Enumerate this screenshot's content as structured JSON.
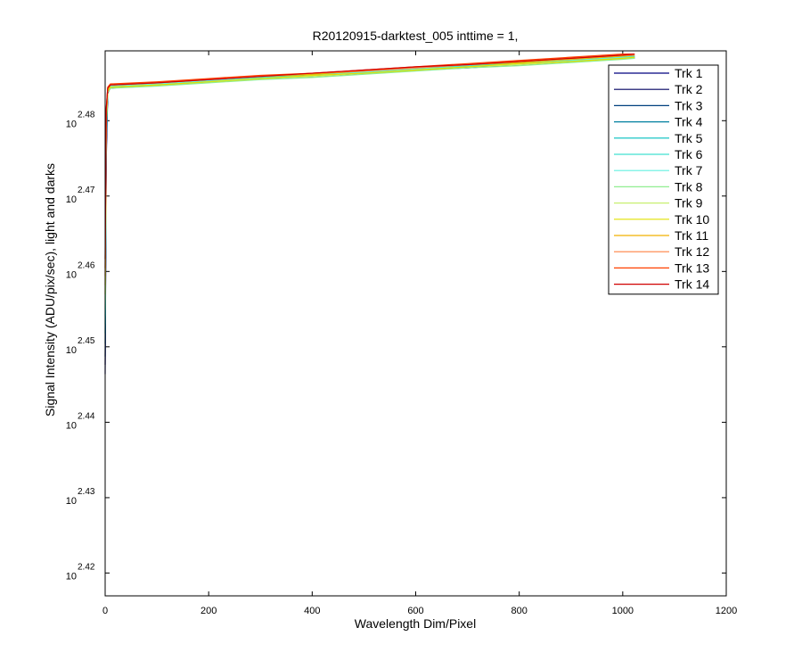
{
  "chart_data": {
    "type": "line",
    "title": "R20120915-darktest_005 inttime = 1,",
    "x_label": "Wavelength Dim/Pixel",
    "y_label": "Signal Intensity (ADU/pix/sec), light and darks",
    "yscale": "log",
    "xlim": [
      0,
      1200
    ],
    "xticks": [
      0,
      200,
      400,
      600,
      800,
      1000,
      1200
    ],
    "ylim": [
      261.2,
      308.5
    ],
    "yticks": [
      {
        "value": 263.03,
        "label": "10",
        "exponent": "2.42"
      },
      {
        "value": 269.15,
        "label": "10",
        "exponent": "2.43"
      },
      {
        "value": 275.42,
        "label": "10",
        "exponent": "2.44"
      },
      {
        "value": 281.84,
        "label": "10",
        "exponent": "2.45"
      },
      {
        "value": 288.4,
        "label": "10",
        "exponent": "2.46"
      },
      {
        "value": 295.12,
        "label": "10",
        "exponent": "2.47"
      },
      {
        "value": 301.99,
        "label": "10",
        "exponent": "2.48"
      }
    ],
    "legend": "upper right",
    "x": [
      0,
      2,
      5,
      10,
      100,
      200,
      300,
      400,
      500,
      600,
      700,
      800,
      900,
      1000,
      1023
    ],
    "series": [
      {
        "name": "Trk 1",
        "color": "#00007f",
        "values": [
          279.5,
          298.2,
          304.5,
          305.1,
          305.3,
          305.6,
          306.0,
          306.1,
          306.4,
          306.7,
          306.9,
          307.2,
          307.5,
          307.8,
          307.8
        ]
      },
      {
        "name": "Trk 2",
        "color": "#000060",
        "values": [
          280.3,
          299.0,
          304.7,
          305.2,
          305.4,
          305.7,
          305.9,
          306.2,
          306.5,
          306.8,
          307.0,
          307.3,
          307.6,
          307.9,
          307.9
        ]
      },
      {
        "name": "Trk 3",
        "color": "#00407f",
        "values": [
          281.0,
          299.5,
          304.6,
          305.0,
          305.3,
          305.6,
          305.9,
          306.1,
          306.4,
          306.7,
          307.0,
          307.2,
          307.5,
          307.8,
          307.9
        ]
      },
      {
        "name": "Trk 4",
        "color": "#007f9f",
        "values": [
          282.1,
          300.1,
          304.8,
          305.3,
          305.5,
          305.8,
          306.0,
          306.3,
          306.6,
          306.9,
          307.1,
          307.4,
          307.7,
          308.0,
          308.0
        ]
      },
      {
        "name": "Trk 5",
        "color": "#00bfbf",
        "values": [
          283.0,
          300.4,
          304.7,
          305.1,
          305.3,
          305.6,
          305.9,
          306.2,
          306.4,
          306.7,
          307.0,
          307.3,
          307.6,
          307.8,
          307.9
        ]
      },
      {
        "name": "Trk 6",
        "color": "#40e0d0",
        "values": [
          283.8,
          300.9,
          304.9,
          305.2,
          305.4,
          305.7,
          306.0,
          306.2,
          306.5,
          306.8,
          307.1,
          307.3,
          307.6,
          307.9,
          308.0
        ]
      },
      {
        "name": "Trk 7",
        "color": "#60f0e0",
        "values": [
          284.5,
          301.2,
          304.8,
          305.2,
          305.4,
          305.7,
          305.9,
          306.2,
          306.5,
          306.8,
          307.0,
          307.3,
          307.6,
          307.9,
          307.9
        ]
      },
      {
        "name": "Trk 8",
        "color": "#90ee90",
        "values": [
          285.1,
          301.5,
          304.6,
          305.0,
          305.2,
          305.5,
          305.8,
          306.0,
          306.3,
          306.6,
          306.9,
          307.1,
          307.4,
          307.7,
          307.8
        ]
      },
      {
        "name": "Trk 9",
        "color": "#c8f070",
        "values": [
          285.9,
          301.8,
          304.8,
          305.1,
          305.3,
          305.6,
          305.9,
          306.1,
          306.4,
          306.7,
          307.0,
          307.2,
          307.5,
          307.8,
          307.9
        ]
      },
      {
        "name": "Trk 10",
        "color": "#e0e000",
        "values": [
          286.4,
          302.0,
          304.7,
          305.1,
          305.3,
          305.6,
          305.9,
          306.2,
          306.4,
          306.7,
          307.0,
          307.3,
          307.5,
          307.8,
          307.9
        ]
      },
      {
        "name": "Trk 11",
        "color": "#f0b000",
        "values": [
          287.2,
          302.3,
          304.9,
          305.3,
          305.5,
          305.8,
          306.1,
          306.3,
          306.6,
          306.9,
          307.2,
          307.4,
          307.7,
          308.0,
          308.1
        ]
      },
      {
        "name": "Trk 12",
        "color": "#ff8040",
        "values": [
          288.0,
          302.6,
          305.0,
          305.3,
          305.5,
          305.8,
          306.1,
          306.4,
          306.6,
          306.9,
          307.2,
          307.5,
          307.8,
          308.1,
          308.1
        ]
      },
      {
        "name": "Trk 13",
        "color": "#ff4000",
        "values": [
          288.7,
          302.9,
          305.1,
          305.4,
          305.6,
          305.9,
          306.2,
          306.4,
          306.7,
          307.0,
          307.3,
          307.6,
          307.9,
          308.2,
          308.2
        ]
      },
      {
        "name": "Trk 14",
        "color": "#d00000",
        "values": [
          289.5,
          303.1,
          305.0,
          305.3,
          305.5,
          305.8,
          306.1,
          306.4,
          306.7,
          307.0,
          307.2,
          307.5,
          307.8,
          308.1,
          308.2
        ]
      }
    ]
  }
}
